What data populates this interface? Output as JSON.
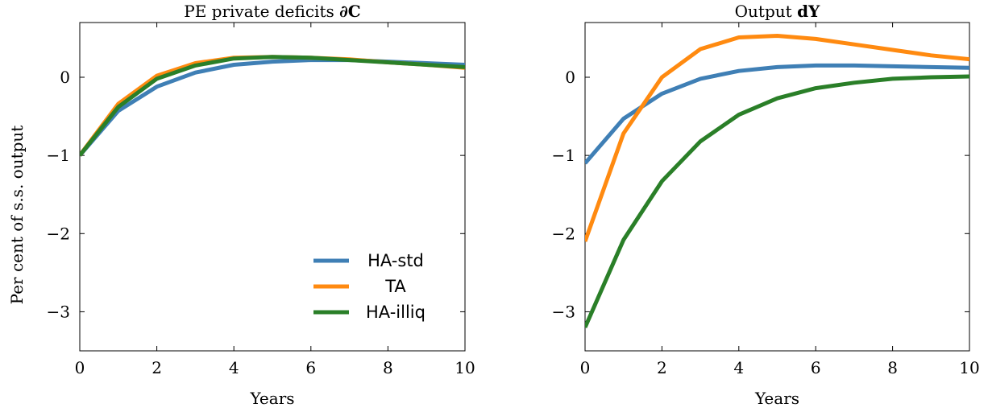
{
  "ylabel": "Per cent of s.s. output",
  "colors": {
    "HA-std": "#3f7fb5",
    "TA": "#ff8a10",
    "HA-illiq": "#2a7f28"
  },
  "chart_data": [
    {
      "type": "line",
      "title_text": "PE private deficits ",
      "title_math": "∂C",
      "xlabel": "Years",
      "ylabel": "Per cent of s.s. output",
      "xlim": [
        0,
        10
      ],
      "ylim": [
        -3.5,
        0.7
      ],
      "xticks": [
        0,
        2,
        4,
        6,
        8,
        10
      ],
      "yticks": [
        -3,
        -2,
        -1,
        0
      ],
      "ytick_labels": [
        "−3",
        "−2",
        "−1",
        "0"
      ],
      "legend": {
        "placement": "bottom-right",
        "entries": [
          "HA-std",
          "TA",
          "HA-illiq"
        ]
      },
      "x": [
        0,
        1,
        2,
        3,
        4,
        5,
        6,
        7,
        8,
        9,
        10
      ],
      "series": [
        {
          "name": "HA-std",
          "values": [
            -1.0,
            -0.43,
            -0.12,
            0.06,
            0.16,
            0.2,
            0.22,
            0.22,
            0.2,
            0.18,
            0.16
          ]
        },
        {
          "name": "TA",
          "values": [
            -1.0,
            -0.34,
            0.02,
            0.18,
            0.25,
            0.26,
            0.25,
            0.23,
            0.19,
            0.16,
            0.12
          ]
        },
        {
          "name": "HA-illiq",
          "values": [
            -1.0,
            -0.38,
            -0.02,
            0.15,
            0.24,
            0.26,
            0.25,
            0.22,
            0.19,
            0.16,
            0.13
          ]
        }
      ]
    },
    {
      "type": "line",
      "title_text": "Output ",
      "title_math": "dY",
      "xlabel": "Years",
      "ylabel": "",
      "xlim": [
        0,
        10
      ],
      "ylim": [
        -3.5,
        0.7
      ],
      "xticks": [
        0,
        2,
        4,
        6,
        8,
        10
      ],
      "yticks": [
        -3,
        -2,
        -1,
        0
      ],
      "ytick_labels": [
        "−3",
        "−2",
        "−1",
        "0"
      ],
      "x": [
        0,
        1,
        2,
        3,
        4,
        5,
        6,
        7,
        8,
        9,
        10
      ],
      "series": [
        {
          "name": "HA-std",
          "values": [
            -1.1,
            -0.53,
            -0.21,
            -0.02,
            0.08,
            0.13,
            0.15,
            0.15,
            0.14,
            0.13,
            0.12
          ]
        },
        {
          "name": "TA",
          "values": [
            -2.1,
            -0.72,
            0.0,
            0.36,
            0.51,
            0.53,
            0.49,
            0.42,
            0.35,
            0.28,
            0.23
          ]
        },
        {
          "name": "HA-illiq",
          "values": [
            -3.2,
            -2.08,
            -1.33,
            -0.82,
            -0.48,
            -0.27,
            -0.14,
            -0.07,
            -0.02,
            0.0,
            0.01
          ]
        }
      ]
    }
  ]
}
